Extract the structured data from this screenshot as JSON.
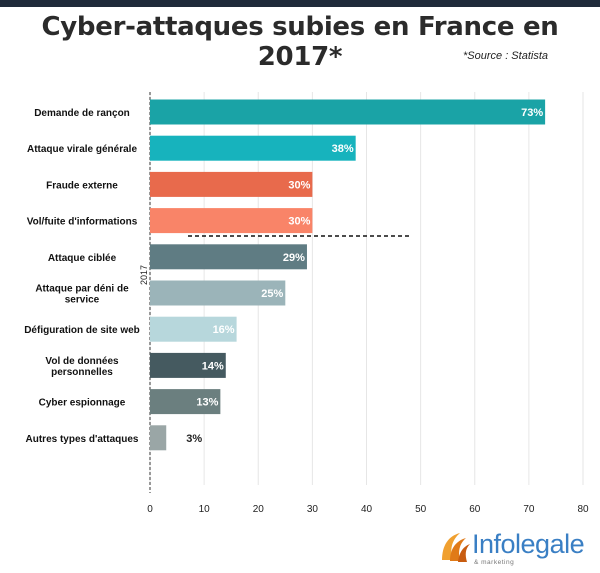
{
  "header": {
    "title": "Cyber-attaques subies en France en 2017*",
    "source": "*Source : Statista"
  },
  "chart_data": {
    "type": "bar",
    "orientation": "horizontal",
    "title": "Cyber-attaques subies en France en 2017*",
    "ylabel": "2017",
    "xlim": [
      0,
      80
    ],
    "xticks": [
      0,
      10,
      20,
      30,
      40,
      50,
      60,
      70,
      80
    ],
    "grid": true,
    "categories": [
      "Demande de rançon",
      "Attaque virale générale",
      "Fraude externe",
      "Vol/fuite d'informations",
      "Attaque ciblée",
      "Attaque par déni de service",
      "Défiguration de site web",
      "Vol de données personnelles",
      "Cyber espionnage",
      "Autres types d'attaques"
    ],
    "category_lines": [
      [
        "Demande de rançon"
      ],
      [
        "Attaque virale générale"
      ],
      [
        "Fraude externe"
      ],
      [
        "Vol/fuite d'informations"
      ],
      [
        "Attaque ciblée"
      ],
      [
        "Attaque par déni de",
        "service"
      ],
      [
        "Défiguration de site web"
      ],
      [
        "Vol de données",
        "personnelles"
      ],
      [
        "Cyber espionnage"
      ],
      [
        "Autres types d'attaques"
      ]
    ],
    "values": [
      73,
      38,
      30,
      30,
      29,
      25,
      16,
      14,
      13,
      3
    ],
    "data_labels": [
      "73%",
      "38%",
      "30%",
      "30%",
      "29%",
      "25%",
      "16%",
      "14%",
      "13%",
      "3%"
    ],
    "colors": [
      "#1aa3a6",
      "#17b3bd",
      "#e86a4c",
      "#f98468",
      "#5f7c83",
      "#9bb4b9",
      "#b7d7dc",
      "#455a60",
      "#6b7f7f",
      "#9aa6a6"
    ]
  },
  "logo": {
    "name": "Infolegale",
    "tagline": "& marketing"
  }
}
